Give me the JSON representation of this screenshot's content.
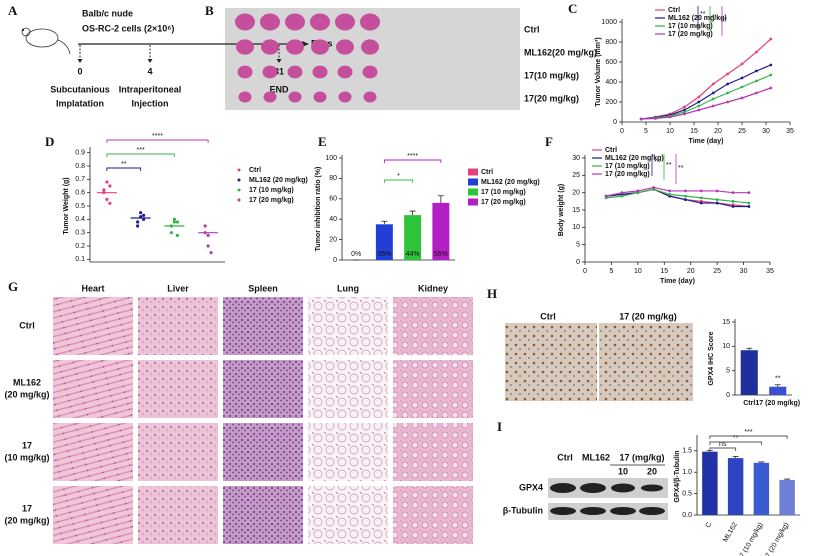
{
  "panel_labels": [
    "A",
    "B",
    "C",
    "D",
    "E",
    "F",
    "G",
    "H",
    "I"
  ],
  "timeline": {
    "mouse": "Balb/c nude",
    "cells": "OS-RC-2 cells (2×10⁶)",
    "axis_label": "Days",
    "events": [
      {
        "day": "0",
        "lines": [
          "Subcutanious",
          "Implatation"
        ]
      },
      {
        "day": "4",
        "lines": [
          "Intraperitoneal",
          "Injection"
        ]
      },
      {
        "day": "31",
        "lines": [
          "END"
        ]
      }
    ]
  },
  "tumor_photo": {
    "rows": [
      "Ctrl",
      "ML162(20 mg/kg)",
      "17(10 mg/kg)",
      "17(20 mg/kg)"
    ]
  },
  "chart_data": [
    {
      "type": "line",
      "ylabel": "Tumor Volume (mm³)",
      "xlabel": "Time (day)",
      "xlim": [
        0,
        35
      ],
      "xticks": [
        0,
        5,
        10,
        15,
        20,
        25,
        30,
        35
      ],
      "ylim": [
        0,
        1000
      ],
      "yticks": [
        0,
        200,
        400,
        600,
        800,
        1000
      ],
      "x": [
        4,
        7,
        10,
        13,
        16,
        19,
        22,
        25,
        28,
        31
      ],
      "series": [
        {
          "name": "Ctrl",
          "color": "#e6407f",
          "values": [
            30,
            50,
            80,
            150,
            250,
            380,
            480,
            580,
            700,
            830
          ]
        },
        {
          "name": "ML162 (20 mg/kg)",
          "color": "#1c1c8c",
          "values": [
            30,
            45,
            70,
            120,
            200,
            290,
            380,
            440,
            510,
            570
          ]
        },
        {
          "name": "17 (10 mg/kg)",
          "color": "#33b34a",
          "values": [
            30,
            40,
            60,
            100,
            160,
            230,
            290,
            350,
            410,
            470
          ]
        },
        {
          "name": "17 (20 mg/kg)",
          "color": "#b23ab2",
          "values": [
            30,
            35,
            50,
            80,
            120,
            160,
            200,
            240,
            290,
            340
          ]
        }
      ],
      "annotations": [
        "**",
        "*",
        "*"
      ]
    },
    {
      "type": "strip",
      "ylabel": "Tumor Weight (g)",
      "ylim": [
        0.08,
        0.92
      ],
      "yticks": [
        0.1,
        0.2,
        0.3,
        0.4,
        0.5,
        0.6,
        0.7,
        0.8,
        0.9
      ],
      "categories": [
        "Ctrl",
        "ML162 (20 mg/kg)",
        "17 (10 mg/kg)",
        "17 (20 mg/kg)"
      ],
      "colors": [
        "#e6407f",
        "#1c1c8c",
        "#33b34a",
        "#b23ab2"
      ],
      "values": [
        [
          0.62,
          0.55,
          0.52,
          0.6,
          0.68,
          0.65
        ],
        [
          0.38,
          0.45,
          0.4,
          0.35,
          0.42,
          0.43
        ],
        [
          0.3,
          0.38,
          0.28,
          0.35,
          0.4,
          0.38
        ],
        [
          0.3,
          0.2,
          0.15,
          0.35,
          0.28
        ]
      ],
      "means": [
        0.6,
        0.41,
        0.35,
        0.3
      ],
      "legend": "right",
      "annotations": [
        "**",
        "***",
        "****"
      ]
    },
    {
      "type": "bar",
      "ylabel": "Tumor inhibition ratio (%)",
      "ylim": [
        0,
        100
      ],
      "yticks": [
        0,
        20,
        40,
        60,
        80,
        100
      ],
      "categories": [
        "Ctrl",
        "ML162 (20 mg/kg)",
        "17 (10 mg/kg)",
        "17 (20 mg/kg)"
      ],
      "colors": [
        "#e6407f",
        "#1f3fd6",
        "#2ec43a",
        "#b31fc4"
      ],
      "values": [
        0,
        35,
        44,
        56
      ],
      "value_labels": [
        "0%",
        "35%",
        "44%",
        "56%"
      ],
      "errors": [
        0,
        3,
        4,
        7
      ],
      "legend": "right",
      "annotations": [
        "*",
        "****"
      ]
    },
    {
      "type": "line",
      "ylabel": "Body weight (g)",
      "xlabel": "Time (day)",
      "xlim": [
        0,
        35
      ],
      "xticks": [
        0,
        5,
        10,
        15,
        20,
        25,
        30,
        35
      ],
      "ylim": [
        0,
        30
      ],
      "yticks": [
        0,
        5,
        10,
        15,
        20,
        25,
        30
      ],
      "x": [
        4,
        7,
        10,
        13,
        16,
        19,
        22,
        25,
        28,
        31
      ],
      "series": [
        {
          "name": "Ctrl",
          "color": "#e6407f",
          "values": [
            19,
            19.5,
            20,
            21,
            19,
            18,
            17.5,
            17,
            16.5,
            16
          ]
        },
        {
          "name": "ML162 (20 mg/kg)",
          "color": "#1c1c8c",
          "values": [
            19,
            19.5,
            20,
            21,
            19,
            18,
            17,
            17,
            16,
            16
          ]
        },
        {
          "name": "17 (10 mg/kg)",
          "color": "#33b34a",
          "values": [
            18.5,
            19,
            20,
            21,
            19.5,
            19,
            18.5,
            18,
            17.5,
            17
          ]
        },
        {
          "name": "17 (20 mg/kg)",
          "color": "#b23ab2",
          "values": [
            19,
            20,
            20.5,
            21.5,
            20.5,
            20.5,
            20.5,
            20.5,
            20,
            20
          ]
        }
      ],
      "annotations": [
        "**",
        "**",
        "**"
      ]
    },
    {
      "type": "bar",
      "ylabel": "GPX4 IHC Score",
      "ylim": [
        0,
        15
      ],
      "yticks": [
        0,
        5,
        10,
        15
      ],
      "categories": [
        "Ctrl",
        "17 (20 mg/kg)"
      ],
      "colors": [
        "#1f2f9c",
        "#3a4fd6"
      ],
      "values": [
        9.2,
        1.7
      ],
      "errors": [
        0.4,
        0.4
      ],
      "annotations": [
        "**"
      ]
    },
    {
      "type": "bar",
      "ylabel": "GPX4/β-Tubulin",
      "ylim": [
        0,
        1.8
      ],
      "yticks": [
        {
          "value": 0,
          "label": "0.0"
        },
        0.5,
        {
          "value": 1,
          "label": "1.0"
        },
        1.5
      ],
      "categories": [
        "C",
        "ML162",
        "17 (10 mg/kg)",
        "17 (20 mg/kg)"
      ],
      "colors": [
        "#2233a8",
        "#2c45c0",
        "#3b5bd0",
        "#6f7fd6"
      ],
      "values": [
        1.48,
        1.33,
        1.22,
        0.82
      ],
      "errors": [
        0.03,
        0.04,
        0.02,
        0.02
      ],
      "rotate_labels": true,
      "annotations": [
        "ns",
        "**",
        "***"
      ]
    }
  ],
  "histology": {
    "columns": [
      "Heart",
      "Liver",
      "Spleen",
      "Lung",
      "Kidney"
    ],
    "rows": [
      [
        "Ctrl"
      ],
      [
        "ML162",
        "(20 mg/kg)"
      ],
      [
        "17",
        "(10 mg/kg)"
      ],
      [
        "17",
        "(20 mg/kg)"
      ]
    ]
  },
  "ihc": {
    "labels": [
      "Ctrl",
      "17 (20 mg/kg)"
    ]
  },
  "western_blot": {
    "groups": [
      "Ctrl",
      "ML162",
      "17 (mg/kg)"
    ],
    "doses": [
      "10",
      "20"
    ],
    "proteins": [
      "GPX4",
      "β-Tubulin"
    ]
  }
}
